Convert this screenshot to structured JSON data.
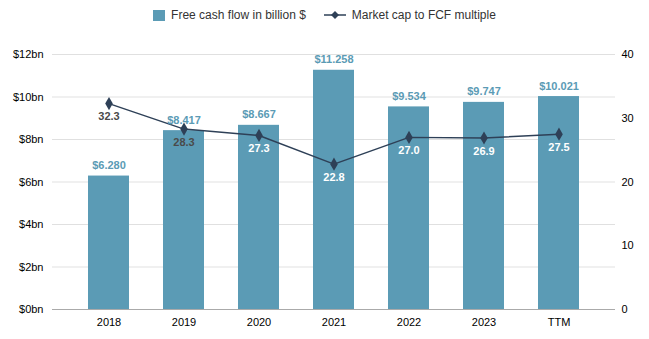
{
  "chart_data": {
    "type": "bar",
    "categories": [
      "2018",
      "2019",
      "2020",
      "2021",
      "2022",
      "2023",
      "TTM"
    ],
    "series": [
      {
        "name": "Free cash flow in billion $",
        "type": "bar",
        "color": "#5b9bb5",
        "values": [
          6.28,
          8.417,
          8.667,
          11.258,
          9.534,
          9.747,
          10.021
        ],
        "value_labels": [
          "$6.280",
          "$8.417",
          "$8.667",
          "$11.258",
          "$9.534",
          "$9.747",
          "$10.021"
        ]
      },
      {
        "name": "Market cap to FCF multiple",
        "type": "line",
        "axis": "y2",
        "color": "#2e4057",
        "marker": "diamond",
        "values": [
          32.3,
          28.3,
          27.3,
          22.8,
          27.0,
          26.9,
          27.5
        ],
        "value_labels": [
          "32.3",
          "28.3",
          "27.3",
          "22.8",
          "27.0",
          "26.9",
          "27.5"
        ]
      }
    ],
    "ylim": [
      0,
      12
    ],
    "yticks": [
      {
        "value": 0,
        "label": "$0bn"
      },
      {
        "value": 2,
        "label": "$2bn"
      },
      {
        "value": 4,
        "label": "$4bn"
      },
      {
        "value": 6,
        "label": "$6bn"
      },
      {
        "value": 8,
        "label": "$8bn"
      },
      {
        "value": 10,
        "label": "$10bn"
      },
      {
        "value": 12,
        "label": "$12bn"
      }
    ],
    "y2lim": [
      0,
      40
    ],
    "y2ticks": [
      0,
      10,
      20,
      30,
      40
    ],
    "grid": true,
    "legend": "top",
    "data_labels": true
  }
}
